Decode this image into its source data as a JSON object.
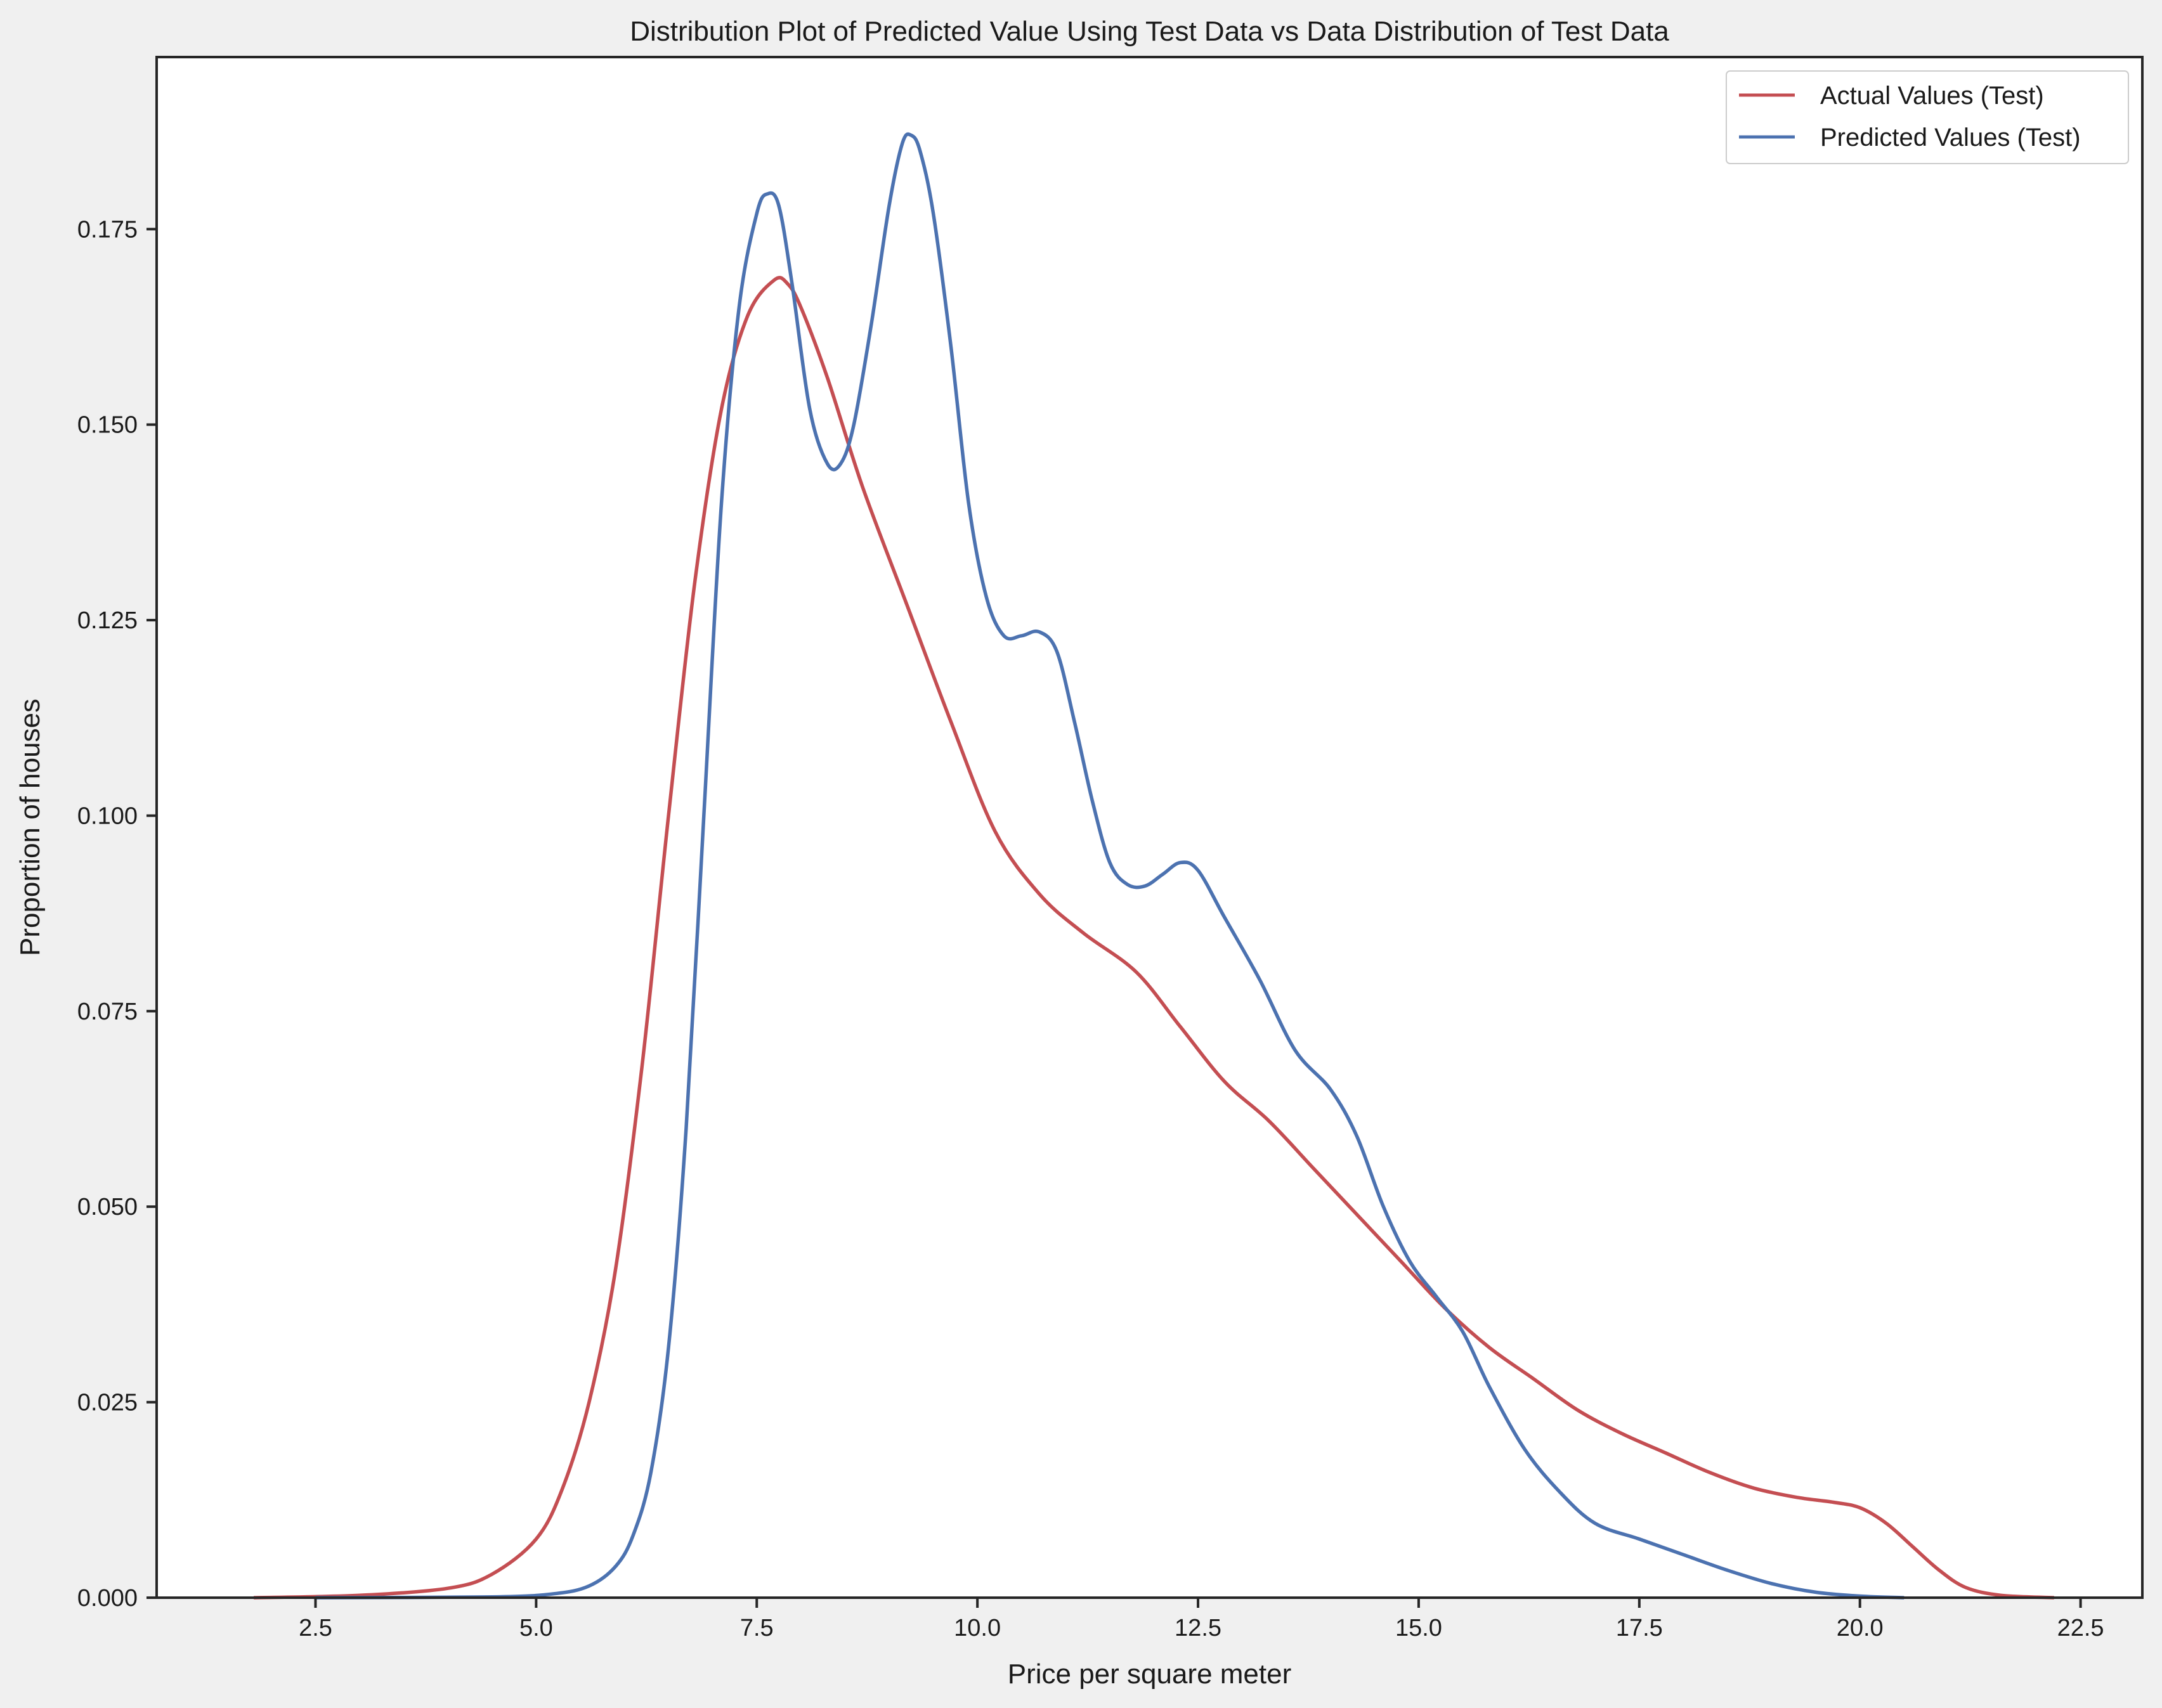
{
  "chart_data": {
    "type": "line",
    "title": "Distribution  Plot of  Predicted Value Using Test Data vs Data Distribution of Test Data",
    "xlabel": "Price per square meter",
    "ylabel": "Proportion of houses",
    "xlim": [
      0.7,
      23.2
    ],
    "ylim": [
      0,
      0.197
    ],
    "xticks": [
      2.5,
      5.0,
      7.5,
      10.0,
      12.5,
      15.0,
      17.5,
      20.0,
      22.5
    ],
    "xtick_labels": [
      "2.5",
      "5.0",
      "7.5",
      "10.0",
      "12.5",
      "15.0",
      "17.5",
      "20.0",
      "22.5"
    ],
    "yticks": [
      0.0,
      0.025,
      0.05,
      0.075,
      0.1,
      0.125,
      0.15,
      0.175
    ],
    "ytick_labels": [
      "0.000",
      "0.025",
      "0.050",
      "0.075",
      "0.100",
      "0.125",
      "0.150",
      "0.175"
    ],
    "grid": false,
    "legend_position": "top-right",
    "series": [
      {
        "name": "Actual Values (Test)",
        "color": "#c44e52",
        "points": [
          [
            1.8,
            0.0
          ],
          [
            3.0,
            0.0003
          ],
          [
            4.0,
            0.0012
          ],
          [
            4.5,
            0.003
          ],
          [
            5.0,
            0.0075
          ],
          [
            5.3,
            0.014
          ],
          [
            5.6,
            0.025
          ],
          [
            5.9,
            0.042
          ],
          [
            6.2,
            0.068
          ],
          [
            6.5,
            0.1
          ],
          [
            6.8,
            0.13
          ],
          [
            7.1,
            0.152
          ],
          [
            7.4,
            0.164
          ],
          [
            7.7,
            0.1685
          ],
          [
            7.85,
            0.168
          ],
          [
            8.0,
            0.165
          ],
          [
            8.3,
            0.156
          ],
          [
            8.7,
            0.142
          ],
          [
            9.2,
            0.127
          ],
          [
            9.7,
            0.112
          ],
          [
            10.2,
            0.098
          ],
          [
            10.7,
            0.09
          ],
          [
            11.2,
            0.085
          ],
          [
            11.8,
            0.08
          ],
          [
            12.3,
            0.073
          ],
          [
            12.8,
            0.066
          ],
          [
            13.3,
            0.061
          ],
          [
            13.8,
            0.055
          ],
          [
            14.3,
            0.049
          ],
          [
            14.8,
            0.043
          ],
          [
            15.3,
            0.037
          ],
          [
            15.8,
            0.032
          ],
          [
            16.3,
            0.028
          ],
          [
            16.8,
            0.024
          ],
          [
            17.3,
            0.021
          ],
          [
            17.8,
            0.0185
          ],
          [
            18.3,
            0.016
          ],
          [
            18.8,
            0.014
          ],
          [
            19.3,
            0.0128
          ],
          [
            19.7,
            0.0122
          ],
          [
            20.0,
            0.0115
          ],
          [
            20.3,
            0.0095
          ],
          [
            20.6,
            0.0065
          ],
          [
            20.9,
            0.0035
          ],
          [
            21.2,
            0.0013
          ],
          [
            21.6,
            0.0003
          ],
          [
            22.2,
            0.0
          ]
        ]
      },
      {
        "name": "Predicted Values (Test)",
        "color": "#4c72b0",
        "points": [
          [
            2.5,
            0.0
          ],
          [
            4.5,
            0.0001
          ],
          [
            5.2,
            0.0005
          ],
          [
            5.6,
            0.0015
          ],
          [
            5.9,
            0.004
          ],
          [
            6.1,
            0.008
          ],
          [
            6.3,
            0.016
          ],
          [
            6.5,
            0.032
          ],
          [
            6.7,
            0.06
          ],
          [
            6.9,
            0.1
          ],
          [
            7.1,
            0.14
          ],
          [
            7.3,
            0.165
          ],
          [
            7.5,
            0.177
          ],
          [
            7.62,
            0.1795
          ],
          [
            7.75,
            0.178
          ],
          [
            7.9,
            0.168
          ],
          [
            8.1,
            0.152
          ],
          [
            8.3,
            0.145
          ],
          [
            8.45,
            0.145
          ],
          [
            8.6,
            0.15
          ],
          [
            8.8,
            0.163
          ],
          [
            9.0,
            0.178
          ],
          [
            9.15,
            0.186
          ],
          [
            9.25,
            0.187
          ],
          [
            9.35,
            0.185
          ],
          [
            9.5,
            0.177
          ],
          [
            9.7,
            0.16
          ],
          [
            9.9,
            0.14
          ],
          [
            10.1,
            0.128
          ],
          [
            10.3,
            0.123
          ],
          [
            10.5,
            0.123
          ],
          [
            10.7,
            0.1235
          ],
          [
            10.9,
            0.121
          ],
          [
            11.1,
            0.112
          ],
          [
            11.3,
            0.102
          ],
          [
            11.5,
            0.094
          ],
          [
            11.7,
            0.0912
          ],
          [
            11.9,
            0.091
          ],
          [
            12.1,
            0.0925
          ],
          [
            12.3,
            0.094
          ],
          [
            12.5,
            0.093
          ],
          [
            12.8,
            0.087
          ],
          [
            13.2,
            0.079
          ],
          [
            13.6,
            0.07
          ],
          [
            14.0,
            0.065
          ],
          [
            14.3,
            0.059
          ],
          [
            14.6,
            0.05
          ],
          [
            14.9,
            0.043
          ],
          [
            15.2,
            0.0385
          ],
          [
            15.5,
            0.034
          ],
          [
            15.8,
            0.027
          ],
          [
            16.2,
            0.019
          ],
          [
            16.6,
            0.0135
          ],
          [
            17.0,
            0.0095
          ],
          [
            17.5,
            0.0075
          ],
          [
            18.0,
            0.0055
          ],
          [
            18.5,
            0.0035
          ],
          [
            19.0,
            0.0018
          ],
          [
            19.5,
            0.0007
          ],
          [
            20.0,
            0.0002
          ],
          [
            20.5,
            0.0
          ]
        ]
      }
    ]
  }
}
